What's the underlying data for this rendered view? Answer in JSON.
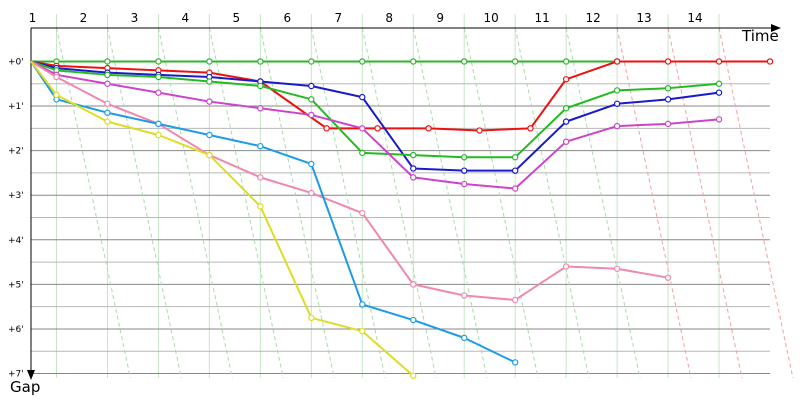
{
  "chart_data": {
    "type": "line",
    "xlabel": "Time",
    "ylabel": "Gap",
    "x_ticks": [
      "1",
      "2",
      "3",
      "4",
      "5",
      "6",
      "7",
      "8",
      "9",
      "10",
      "11",
      "12",
      "13",
      "14"
    ],
    "y_ticks": [
      "+0'",
      "+1'",
      "+2'",
      "+3'",
      "+4'",
      "+5'",
      "+6'",
      "+7'"
    ],
    "xlim": [
      0.5,
      15
    ],
    "ylim": [
      -0.75,
      7.1
    ],
    "grid": true,
    "legend": "none",
    "series": [
      {
        "color": "#2db52d",
        "points": [
          [
            0.5,
            0
          ],
          [
            1,
            0
          ],
          [
            2,
            0
          ],
          [
            3,
            0
          ],
          [
            4,
            0
          ],
          [
            5,
            0
          ],
          [
            6,
            0
          ],
          [
            7,
            0
          ],
          [
            8,
            0
          ],
          [
            9,
            0
          ],
          [
            10,
            0
          ],
          [
            11,
            0
          ],
          [
            12,
            0
          ]
        ]
      },
      {
        "color": "#ee1111",
        "points": [
          [
            0.5,
            0
          ],
          [
            1,
            0.1
          ],
          [
            2,
            0.15
          ],
          [
            3,
            0.2
          ],
          [
            4,
            0.25
          ],
          [
            5,
            0.45
          ],
          [
            6.3,
            1.5
          ],
          [
            7.3,
            1.5
          ],
          [
            8.3,
            1.5
          ],
          [
            9.3,
            1.55
          ],
          [
            10.3,
            1.5
          ],
          [
            11,
            0.4
          ],
          [
            12,
            0
          ],
          [
            13,
            0
          ],
          [
            14,
            0
          ],
          [
            15,
            0
          ]
        ]
      },
      {
        "color": "#1a1acc",
        "points": [
          [
            0.5,
            0
          ],
          [
            1,
            0.15
          ],
          [
            2,
            0.25
          ],
          [
            3,
            0.3
          ],
          [
            4,
            0.35
          ],
          [
            5,
            0.45
          ],
          [
            6,
            0.55
          ],
          [
            7,
            0.8
          ],
          [
            8,
            2.4
          ],
          [
            9,
            2.45
          ],
          [
            10,
            2.45
          ],
          [
            11,
            1.35
          ],
          [
            12,
            0.95
          ],
          [
            13,
            0.85
          ],
          [
            14,
            0.7
          ]
        ]
      },
      {
        "color": "#22bb22",
        "points": [
          [
            0.5,
            0
          ],
          [
            1,
            0.2
          ],
          [
            2,
            0.3
          ],
          [
            3,
            0.35
          ],
          [
            4,
            0.45
          ],
          [
            5,
            0.55
          ],
          [
            6,
            0.85
          ],
          [
            7,
            2.05
          ],
          [
            8,
            2.1
          ],
          [
            9,
            2.15
          ],
          [
            10,
            2.15
          ],
          [
            11,
            1.05
          ],
          [
            12,
            0.65
          ],
          [
            13,
            0.6
          ],
          [
            14,
            0.5
          ]
        ]
      },
      {
        "color": "#cc44cc",
        "points": [
          [
            0.5,
            0
          ],
          [
            1,
            0.3
          ],
          [
            2,
            0.5
          ],
          [
            3,
            0.7
          ],
          [
            4,
            0.9
          ],
          [
            5,
            1.05
          ],
          [
            6,
            1.2
          ],
          [
            7,
            1.5
          ],
          [
            8,
            2.6
          ],
          [
            9,
            2.75
          ],
          [
            10,
            2.85
          ],
          [
            11,
            1.8
          ],
          [
            12,
            1.45
          ],
          [
            13,
            1.4
          ],
          [
            14,
            1.3
          ]
        ]
      },
      {
        "color": "#f088b0",
        "points": [
          [
            0.5,
            0
          ],
          [
            1,
            0.35
          ],
          [
            2,
            0.95
          ],
          [
            3,
            1.4
          ],
          [
            4,
            2.1
          ],
          [
            5,
            2.6
          ],
          [
            6,
            2.95
          ],
          [
            7,
            3.4
          ],
          [
            8,
            5
          ],
          [
            9,
            5.25
          ],
          [
            10,
            5.35
          ],
          [
            11,
            4.6
          ],
          [
            12,
            4.65
          ],
          [
            13,
            4.85
          ]
        ]
      },
      {
        "color": "#1e9be6",
        "points": [
          [
            0.5,
            0
          ],
          [
            1,
            0.85
          ],
          [
            2,
            1.15
          ],
          [
            3,
            1.4
          ],
          [
            4,
            1.65
          ],
          [
            5,
            1.9
          ],
          [
            6,
            2.3
          ],
          [
            7,
            5.45
          ],
          [
            8,
            5.8
          ],
          [
            9,
            6.2
          ],
          [
            10,
            6.75
          ]
        ]
      },
      {
        "color": "#dddd22",
        "points": [
          [
            0.5,
            0
          ],
          [
            1,
            0.75
          ],
          [
            2,
            1.35
          ],
          [
            3,
            1.65
          ],
          [
            4,
            2.1
          ],
          [
            5,
            3.25
          ],
          [
            6,
            5.75
          ],
          [
            7,
            6.05
          ],
          [
            8,
            7.05
          ]
        ]
      }
    ]
  }
}
